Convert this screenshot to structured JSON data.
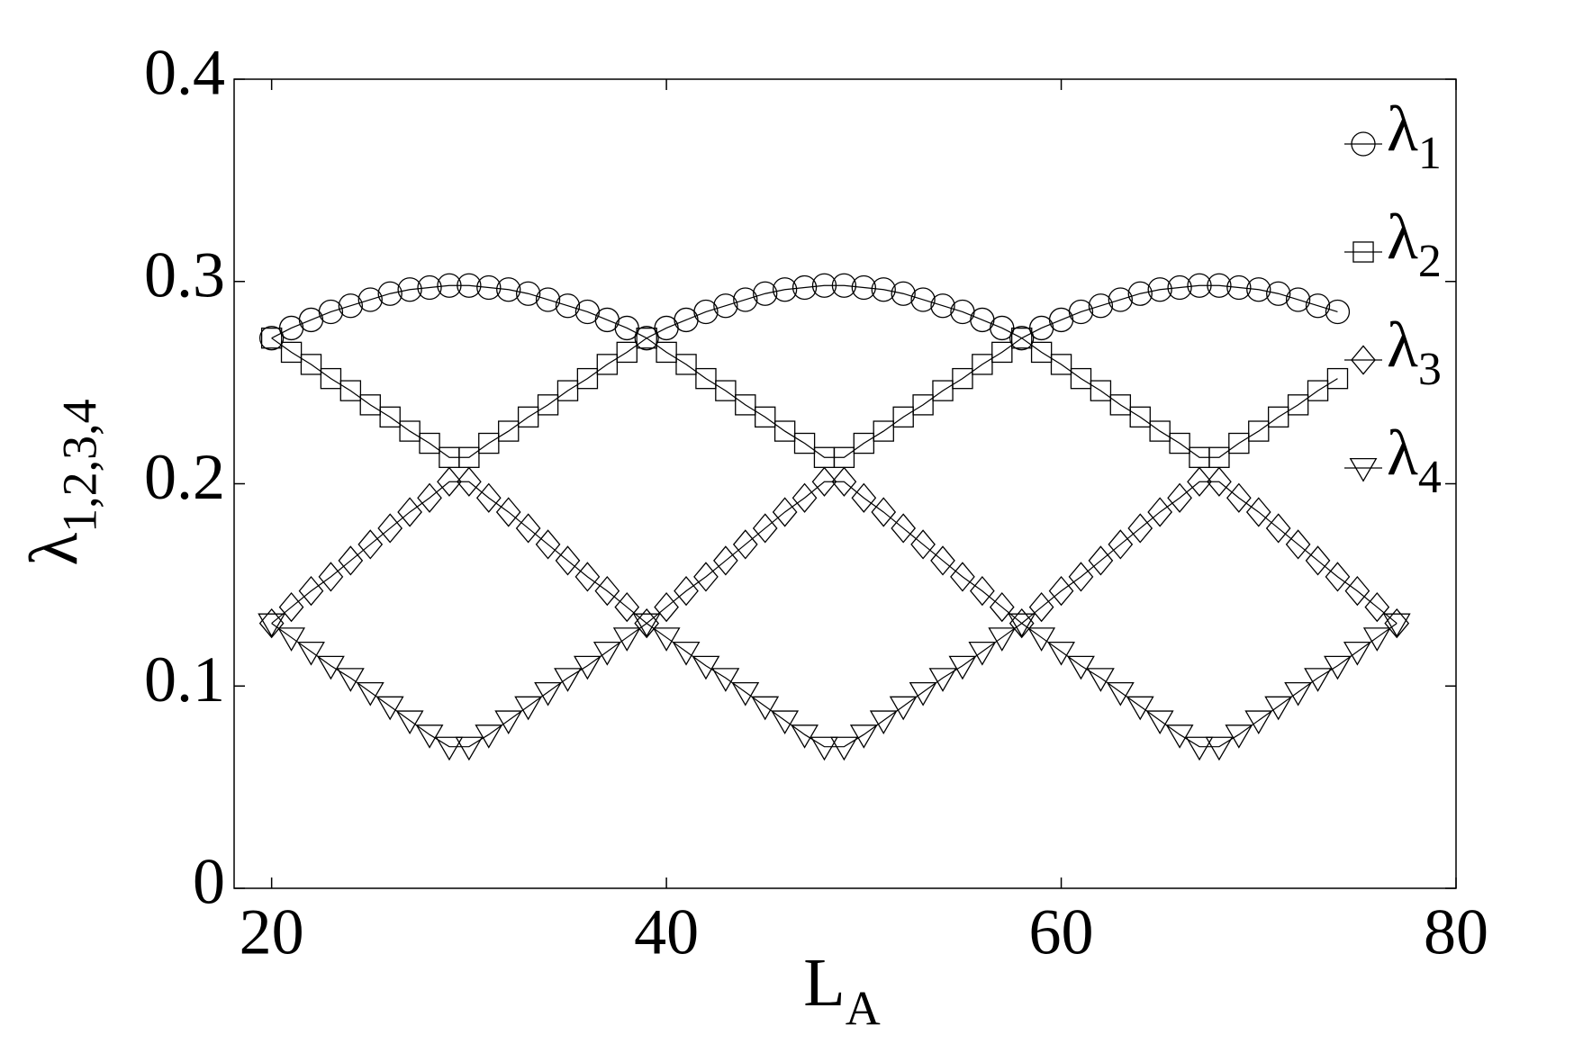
{
  "chart_data": {
    "type": "line",
    "x_label": "LA",
    "y_label": "λ1,2,3,4",
    "x": [
      20,
      21,
      22,
      23,
      24,
      25,
      26,
      27,
      28,
      29,
      30,
      31,
      32,
      33,
      34,
      35,
      36,
      37,
      38,
      39,
      40,
      41,
      42,
      43,
      44,
      45,
      46,
      47,
      48,
      49,
      50,
      51,
      52,
      53,
      54,
      55,
      56,
      57,
      58,
      59,
      60,
      61,
      62,
      63,
      64,
      65,
      66,
      67,
      68,
      69,
      70,
      71,
      72,
      73,
      74,
      75,
      76,
      77
    ],
    "series": [
      {
        "name": "λ1",
        "color": "#000000",
        "marker": "circle",
        "values": [
          0.272,
          0.277,
          0.281,
          0.285,
          0.288,
          0.291,
          0.294,
          0.296,
          0.297,
          0.298,
          0.298,
          0.297,
          0.296,
          0.294,
          0.291,
          0.288,
          0.285,
          0.281,
          0.277,
          0.272,
          0.277,
          0.281,
          0.285,
          0.288,
          0.291,
          0.294,
          0.296,
          0.297,
          0.298,
          0.298,
          0.297,
          0.296,
          0.294,
          0.291,
          0.288,
          0.285,
          0.281,
          0.277,
          0.272,
          0.277,
          0.281,
          0.285,
          0.288,
          0.291,
          0.294,
          0.296,
          0.297,
          0.298,
          0.298,
          0.297,
          0.296,
          0.294,
          0.291,
          0.288,
          0.285,
          null,
          null,
          null
        ]
      },
      {
        "name": "λ2",
        "color": "#000000",
        "marker": "square",
        "values": [
          0.272,
          0.265,
          0.259,
          0.252,
          0.246,
          0.239,
          0.233,
          0.226,
          0.22,
          0.213,
          0.213,
          0.22,
          0.226,
          0.233,
          0.239,
          0.246,
          0.252,
          0.259,
          0.265,
          0.272,
          0.265,
          0.259,
          0.252,
          0.246,
          0.239,
          0.233,
          0.226,
          0.22,
          0.213,
          0.213,
          0.22,
          0.226,
          0.233,
          0.239,
          0.246,
          0.252,
          0.259,
          0.265,
          0.272,
          0.265,
          0.259,
          0.252,
          0.246,
          0.239,
          0.233,
          0.226,
          0.22,
          0.213,
          0.213,
          0.22,
          0.226,
          0.233,
          0.239,
          0.246,
          0.252,
          null,
          null,
          null
        ]
      },
      {
        "name": "λ3",
        "color": "#000000",
        "marker": "diamond",
        "values": [
          0.131,
          0.139,
          0.147,
          0.154,
          0.162,
          0.17,
          0.178,
          0.186,
          0.193,
          0.201,
          0.201,
          0.193,
          0.186,
          0.178,
          0.17,
          0.162,
          0.154,
          0.147,
          0.139,
          0.131,
          0.139,
          0.147,
          0.154,
          0.162,
          0.17,
          0.178,
          0.186,
          0.193,
          0.201,
          0.201,
          0.193,
          0.186,
          0.178,
          0.17,
          0.162,
          0.154,
          0.147,
          0.139,
          0.131,
          0.139,
          0.147,
          0.154,
          0.162,
          0.17,
          0.178,
          0.186,
          0.193,
          0.201,
          0.201,
          0.193,
          0.186,
          0.178,
          0.17,
          0.162,
          0.154,
          0.147,
          0.139,
          0.131
        ]
      },
      {
        "name": "λ4",
        "color": "#000000",
        "marker": "triangle-down",
        "values": [
          0.131,
          0.124,
          0.117,
          0.11,
          0.104,
          0.097,
          0.09,
          0.083,
          0.076,
          0.07,
          0.07,
          0.076,
          0.083,
          0.09,
          0.097,
          0.104,
          0.11,
          0.117,
          0.124,
          0.131,
          0.124,
          0.117,
          0.11,
          0.104,
          0.097,
          0.09,
          0.083,
          0.076,
          0.07,
          0.07,
          0.076,
          0.083,
          0.09,
          0.097,
          0.104,
          0.11,
          0.117,
          0.124,
          0.131,
          0.124,
          0.117,
          0.11,
          0.104,
          0.097,
          0.09,
          0.083,
          0.076,
          0.07,
          0.07,
          0.076,
          0.083,
          0.09,
          0.097,
          0.104,
          0.11,
          0.117,
          0.124,
          0.131
        ]
      }
    ],
    "xlim": [
      18.1,
      80
    ],
    "xticks": [
      20,
      40,
      60,
      80
    ],
    "ylim": [
      0,
      0.4
    ],
    "yticks": [
      0,
      0.1,
      0.2,
      0.3,
      0.4
    ],
    "legend": "upper right"
  }
}
